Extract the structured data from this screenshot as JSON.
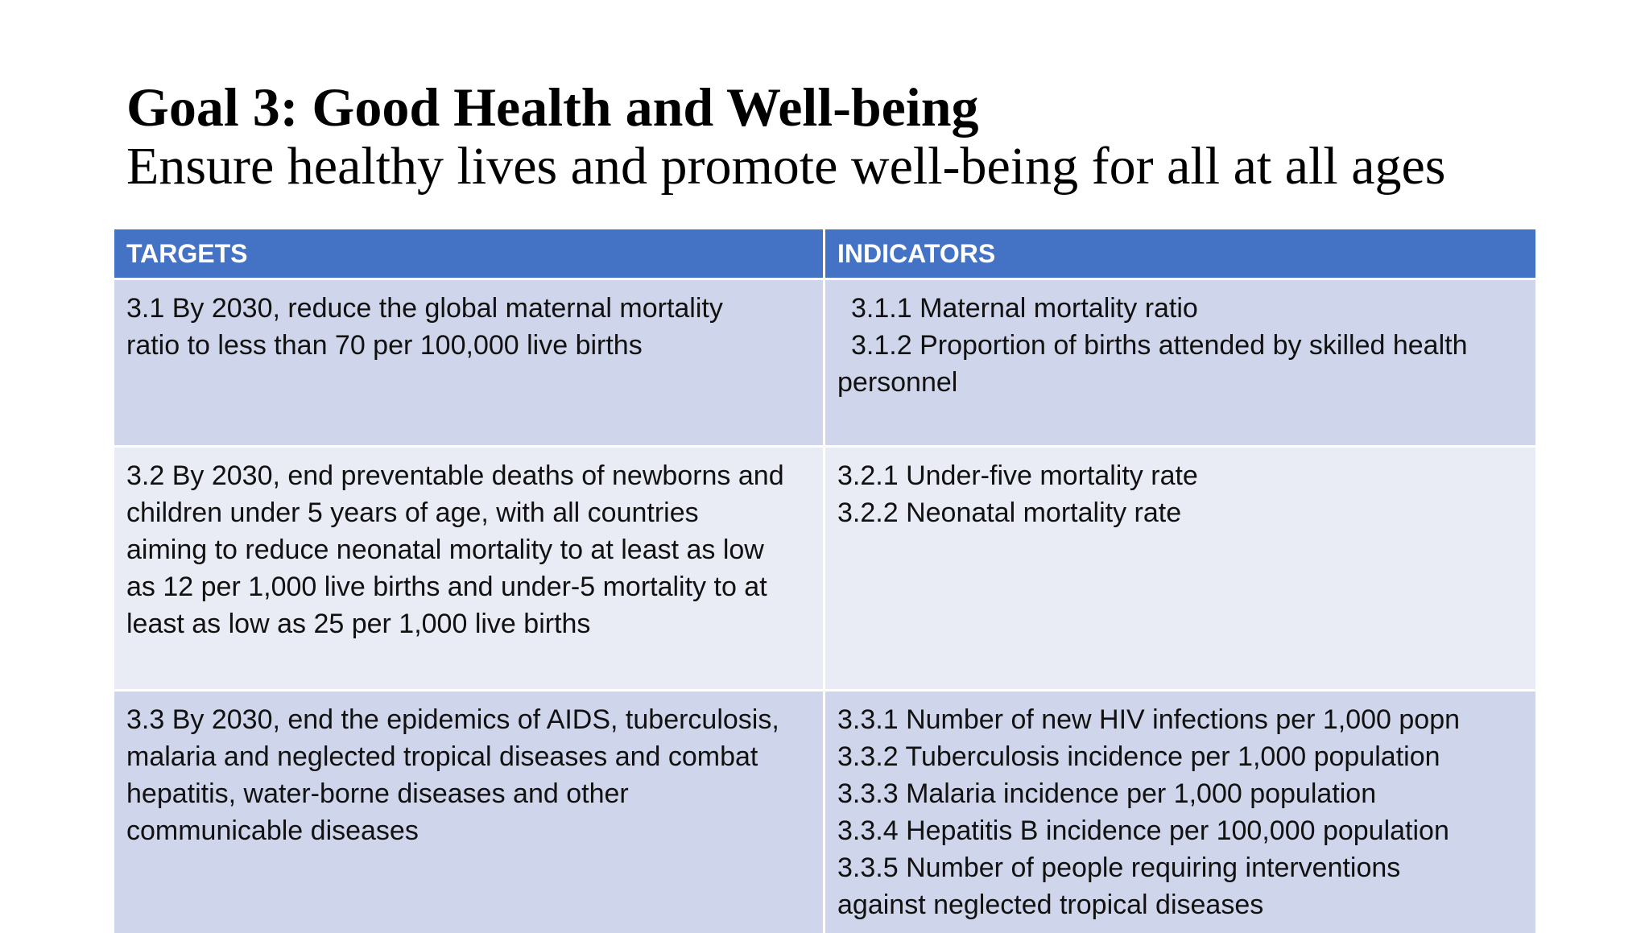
{
  "slide": {
    "title": "Goal 3: Good Health and Well-being",
    "subtitle": "Ensure healthy lives and promote well-being for all at all ages"
  },
  "table": {
    "headers": [
      "TARGETS",
      "INDICATORS"
    ],
    "header_color": "#4472c4",
    "rows": [
      {
        "target_lines": [
          "3.1 By 2030, reduce the global maternal mortality",
          "ratio to less than 70 per 100,000 live births"
        ],
        "indicator_lines": [
          "3.1.1 Maternal mortality ratio",
          "3.1.2 Proportion of births attended by skilled health",
          "personnel"
        ]
      },
      {
        "target_lines": [
          "3.2 By 2030, end preventable deaths of newborns and",
          "children under 5 years of age, with all countries",
          "aiming to reduce neonatal mortality to at least as low",
          "as 12 per 1,000 live births and under-5 mortality to at",
          "least as low as 25 per 1,000 live births"
        ],
        "indicator_lines": [
          "3.2.1 Under-five mortality rate",
          "3.2.2 Neonatal mortality rate"
        ]
      },
      {
        "target_lines": [
          "3.3 By 2030, end the epidemics of AIDS, tuberculosis,",
          "malaria and neglected tropical diseases and combat",
          "hepatitis, water-borne diseases and other",
          "communicable diseases"
        ],
        "indicator_lines": [
          "3.3.1 Number of new HIV infections per 1,000 popn",
          "3.3.2 Tuberculosis incidence per 1,000 population",
          "3.3.3 Malaria incidence per 1,000 population",
          "3.3.4 Hepatitis B incidence per 100,000 population",
          "3.3.5 Number of people requiring interventions",
          "against neglected tropical diseases"
        ]
      }
    ]
  }
}
